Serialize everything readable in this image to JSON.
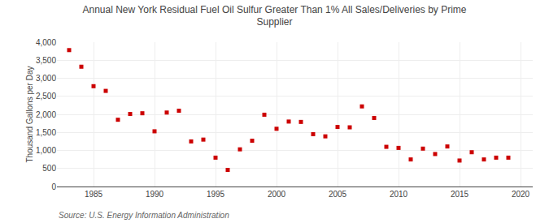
{
  "chart_data": {
    "type": "scatter",
    "title": "Annual New York Residual Fuel Oil Sulfur Greater Than 1% All Sales/Deliveries by Prime\nSupplier",
    "ylabel": "Thousand Gallons per Day",
    "annotations": [
      "Source: U.S. Energy Information Administration"
    ],
    "x": [
      1983,
      1984,
      1985,
      1986,
      1987,
      1988,
      1989,
      1990,
      1991,
      1992,
      1993,
      1994,
      1995,
      1996,
      1997,
      1998,
      1999,
      2000,
      2001,
      2002,
      2003,
      2004,
      2005,
      2006,
      2007,
      2008,
      2009,
      2010,
      2011,
      2012,
      2013,
      2014,
      2015,
      2016,
      2017,
      2018,
      2019
    ],
    "values": [
      3780,
      3320,
      2780,
      2650,
      1850,
      2010,
      2030,
      1530,
      2050,
      2100,
      1250,
      1300,
      800,
      460,
      1030,
      1270,
      1990,
      1600,
      1800,
      1790,
      1450,
      1390,
      1650,
      1640,
      2220,
      1900,
      1100,
      1070,
      750,
      1050,
      900,
      1110,
      720,
      950,
      750,
      800,
      800
    ],
    "color": "#cc0000",
    "marker": "square",
    "xlim": [
      1982,
      2021
    ],
    "ylim": [
      0,
      4000
    ],
    "xticks": [
      1985,
      1990,
      1995,
      2000,
      2005,
      2010,
      2015,
      2020
    ],
    "yticks": [
      0,
      500,
      {
        "value": 1000,
        "label": "1,000"
      },
      {
        "value": 1500,
        "label": "1,500"
      },
      {
        "value": 2000,
        "label": "2,000"
      },
      {
        "value": 2500,
        "label": "2,500"
      },
      {
        "value": 3000,
        "label": "3,000"
      },
      {
        "value": 3500,
        "label": "3,500"
      },
      {
        "value": 4000,
        "label": "4,000"
      }
    ],
    "grid": true
  }
}
